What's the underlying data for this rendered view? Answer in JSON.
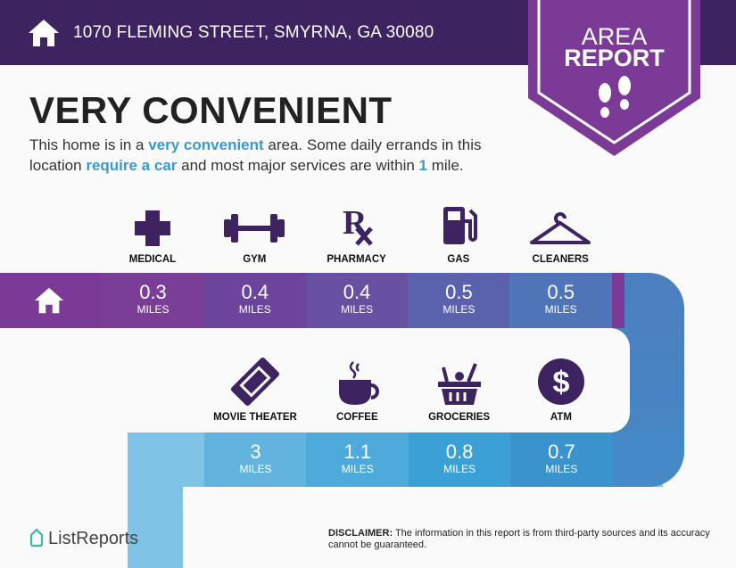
{
  "header": {
    "address": "1070 FLEMING STREET, SMYRNA, GA 30080",
    "icon": "home-icon"
  },
  "banner": {
    "line1": "AREA",
    "line2": "REPORT",
    "icon": "footsteps-icon"
  },
  "title": "VERY CONVENIENT",
  "description": {
    "p1": "This home is in a ",
    "h1": "very convenient",
    "p2": " area. Some daily errands in this location ",
    "h2": "require a car",
    "p3": " and most major services are within ",
    "h3": "1",
    "p4": " mile."
  },
  "row1": [
    {
      "label": "MEDICAL",
      "value": "0.3",
      "unit": "MILES",
      "icon": "medical-cross-icon",
      "color": "#7a3e97"
    },
    {
      "label": "GYM",
      "value": "0.4",
      "unit": "MILES",
      "icon": "dumbbell-icon",
      "color": "#6d449b"
    },
    {
      "label": "PHARMACY",
      "value": "0.4",
      "unit": "MILES",
      "icon": "rx-icon",
      "color": "#6750a2"
    },
    {
      "label": "GAS",
      "value": "0.5",
      "unit": "MILES",
      "icon": "gas-pump-icon",
      "color": "#5b62ad"
    },
    {
      "label": "CLEANERS",
      "value": "0.5",
      "unit": "MILES",
      "icon": "hanger-icon",
      "color": "#4f74b8"
    }
  ],
  "row2": [
    {
      "label": "MOVIE THEATER",
      "value": "3",
      "unit": "MILES",
      "icon": "ticket-icon",
      "color": "#62b4df"
    },
    {
      "label": "COFFEE",
      "value": "1.1",
      "unit": "MILES",
      "icon": "coffee-cup-icon",
      "color": "#4eaadb"
    },
    {
      "label": "GROCERIES",
      "value": "0.8",
      "unit": "MILES",
      "icon": "basket-icon",
      "color": "#3ba0d6"
    },
    {
      "label": "ATM",
      "value": "0.7",
      "unit": "MILES",
      "icon": "dollar-icon",
      "color": "#3b93cd"
    }
  ],
  "footer": {
    "logo": "ListReports",
    "disclaimer_label": "DISCLAIMER:",
    "disclaimer": " The information in this report is from third-party sources and its accuracy cannot be guaranteed."
  }
}
